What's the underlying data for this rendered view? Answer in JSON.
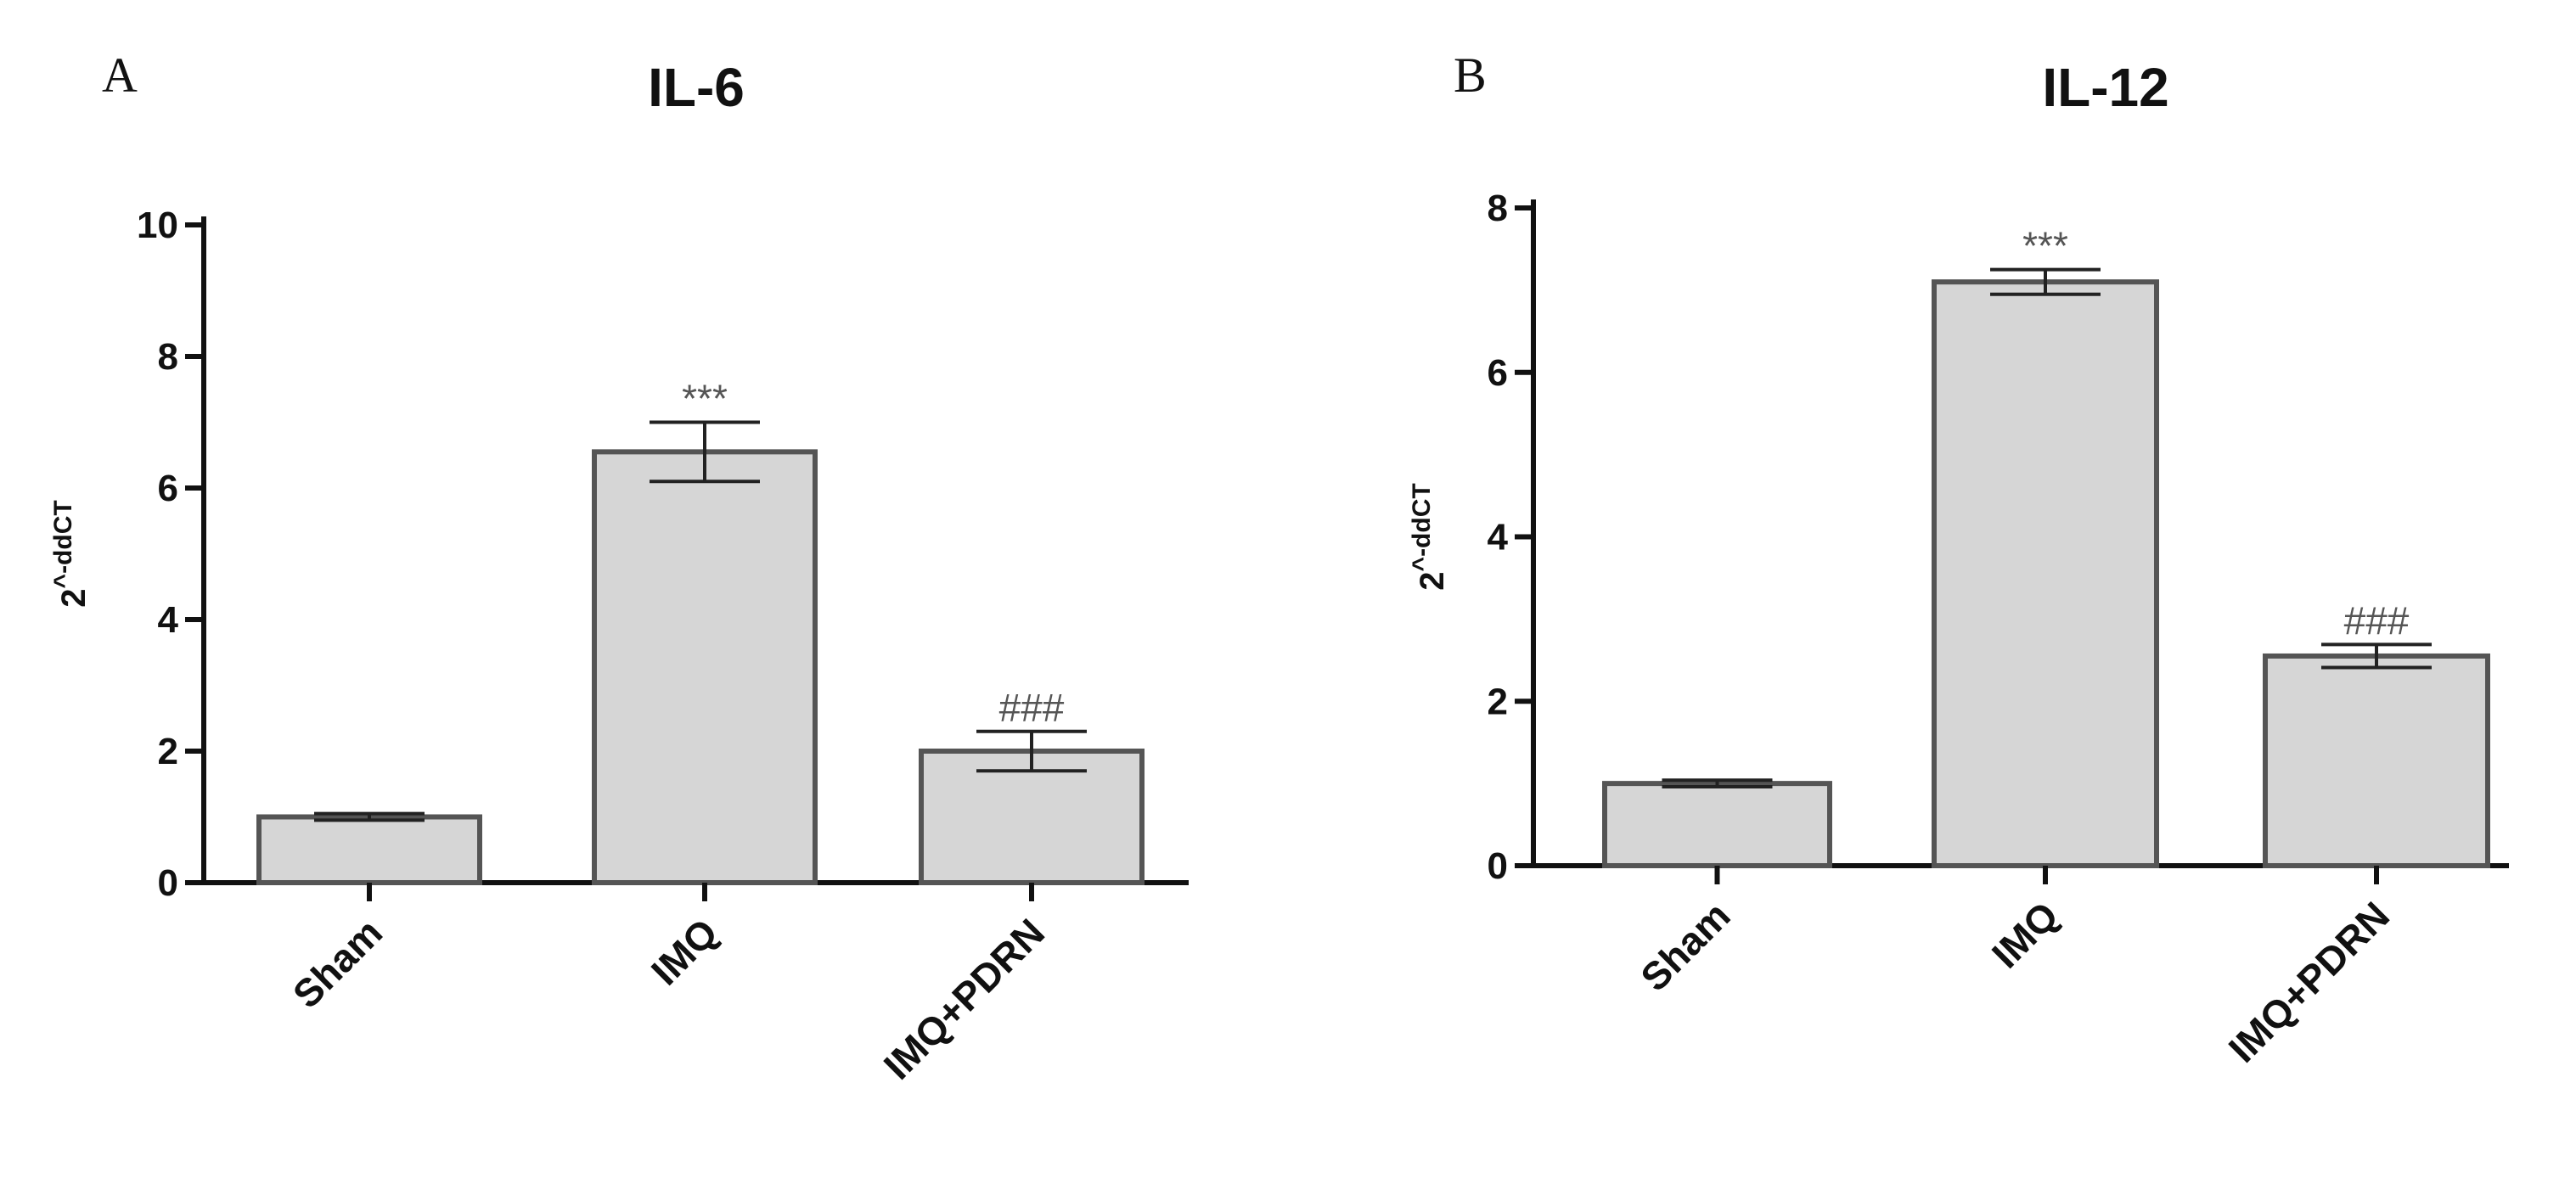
{
  "chart_data": [
    {
      "type": "bar",
      "panel": "A",
      "title": "IL-6",
      "ylabel": "2^-ddCT",
      "xlabel": "",
      "categories": [
        "Sham",
        "IMQ",
        "IMQ+PDRN"
      ],
      "values": [
        1.0,
        6.55,
        2.0
      ],
      "errors": [
        0.05,
        0.45,
        0.3
      ],
      "annotations": [
        "",
        "***",
        "###"
      ],
      "ylim": [
        0,
        10
      ],
      "yticks": [
        0,
        2,
        4,
        6,
        8,
        10
      ],
      "yticks_labels": [
        "0",
        "2",
        "4",
        "6",
        "8",
        "10"
      ],
      "bar_color": "#d6d6d6",
      "grid": false
    },
    {
      "type": "bar",
      "panel": "B",
      "title": "IL-12",
      "ylabel": "2^-ddCT",
      "xlabel": "",
      "categories": [
        "Sham",
        "IMQ",
        "IMQ+PDRN"
      ],
      "values": [
        1.0,
        7.1,
        2.55
      ],
      "errors": [
        0.04,
        0.15,
        0.14
      ],
      "annotations": [
        "",
        "***",
        "###"
      ],
      "ylim": [
        0,
        8
      ],
      "yticks": [
        0,
        2,
        4,
        6,
        8
      ],
      "yticks_labels": [
        "0",
        "2",
        "4",
        "6",
        "8"
      ],
      "bar_color": "#d6d6d6",
      "grid": false
    }
  ]
}
